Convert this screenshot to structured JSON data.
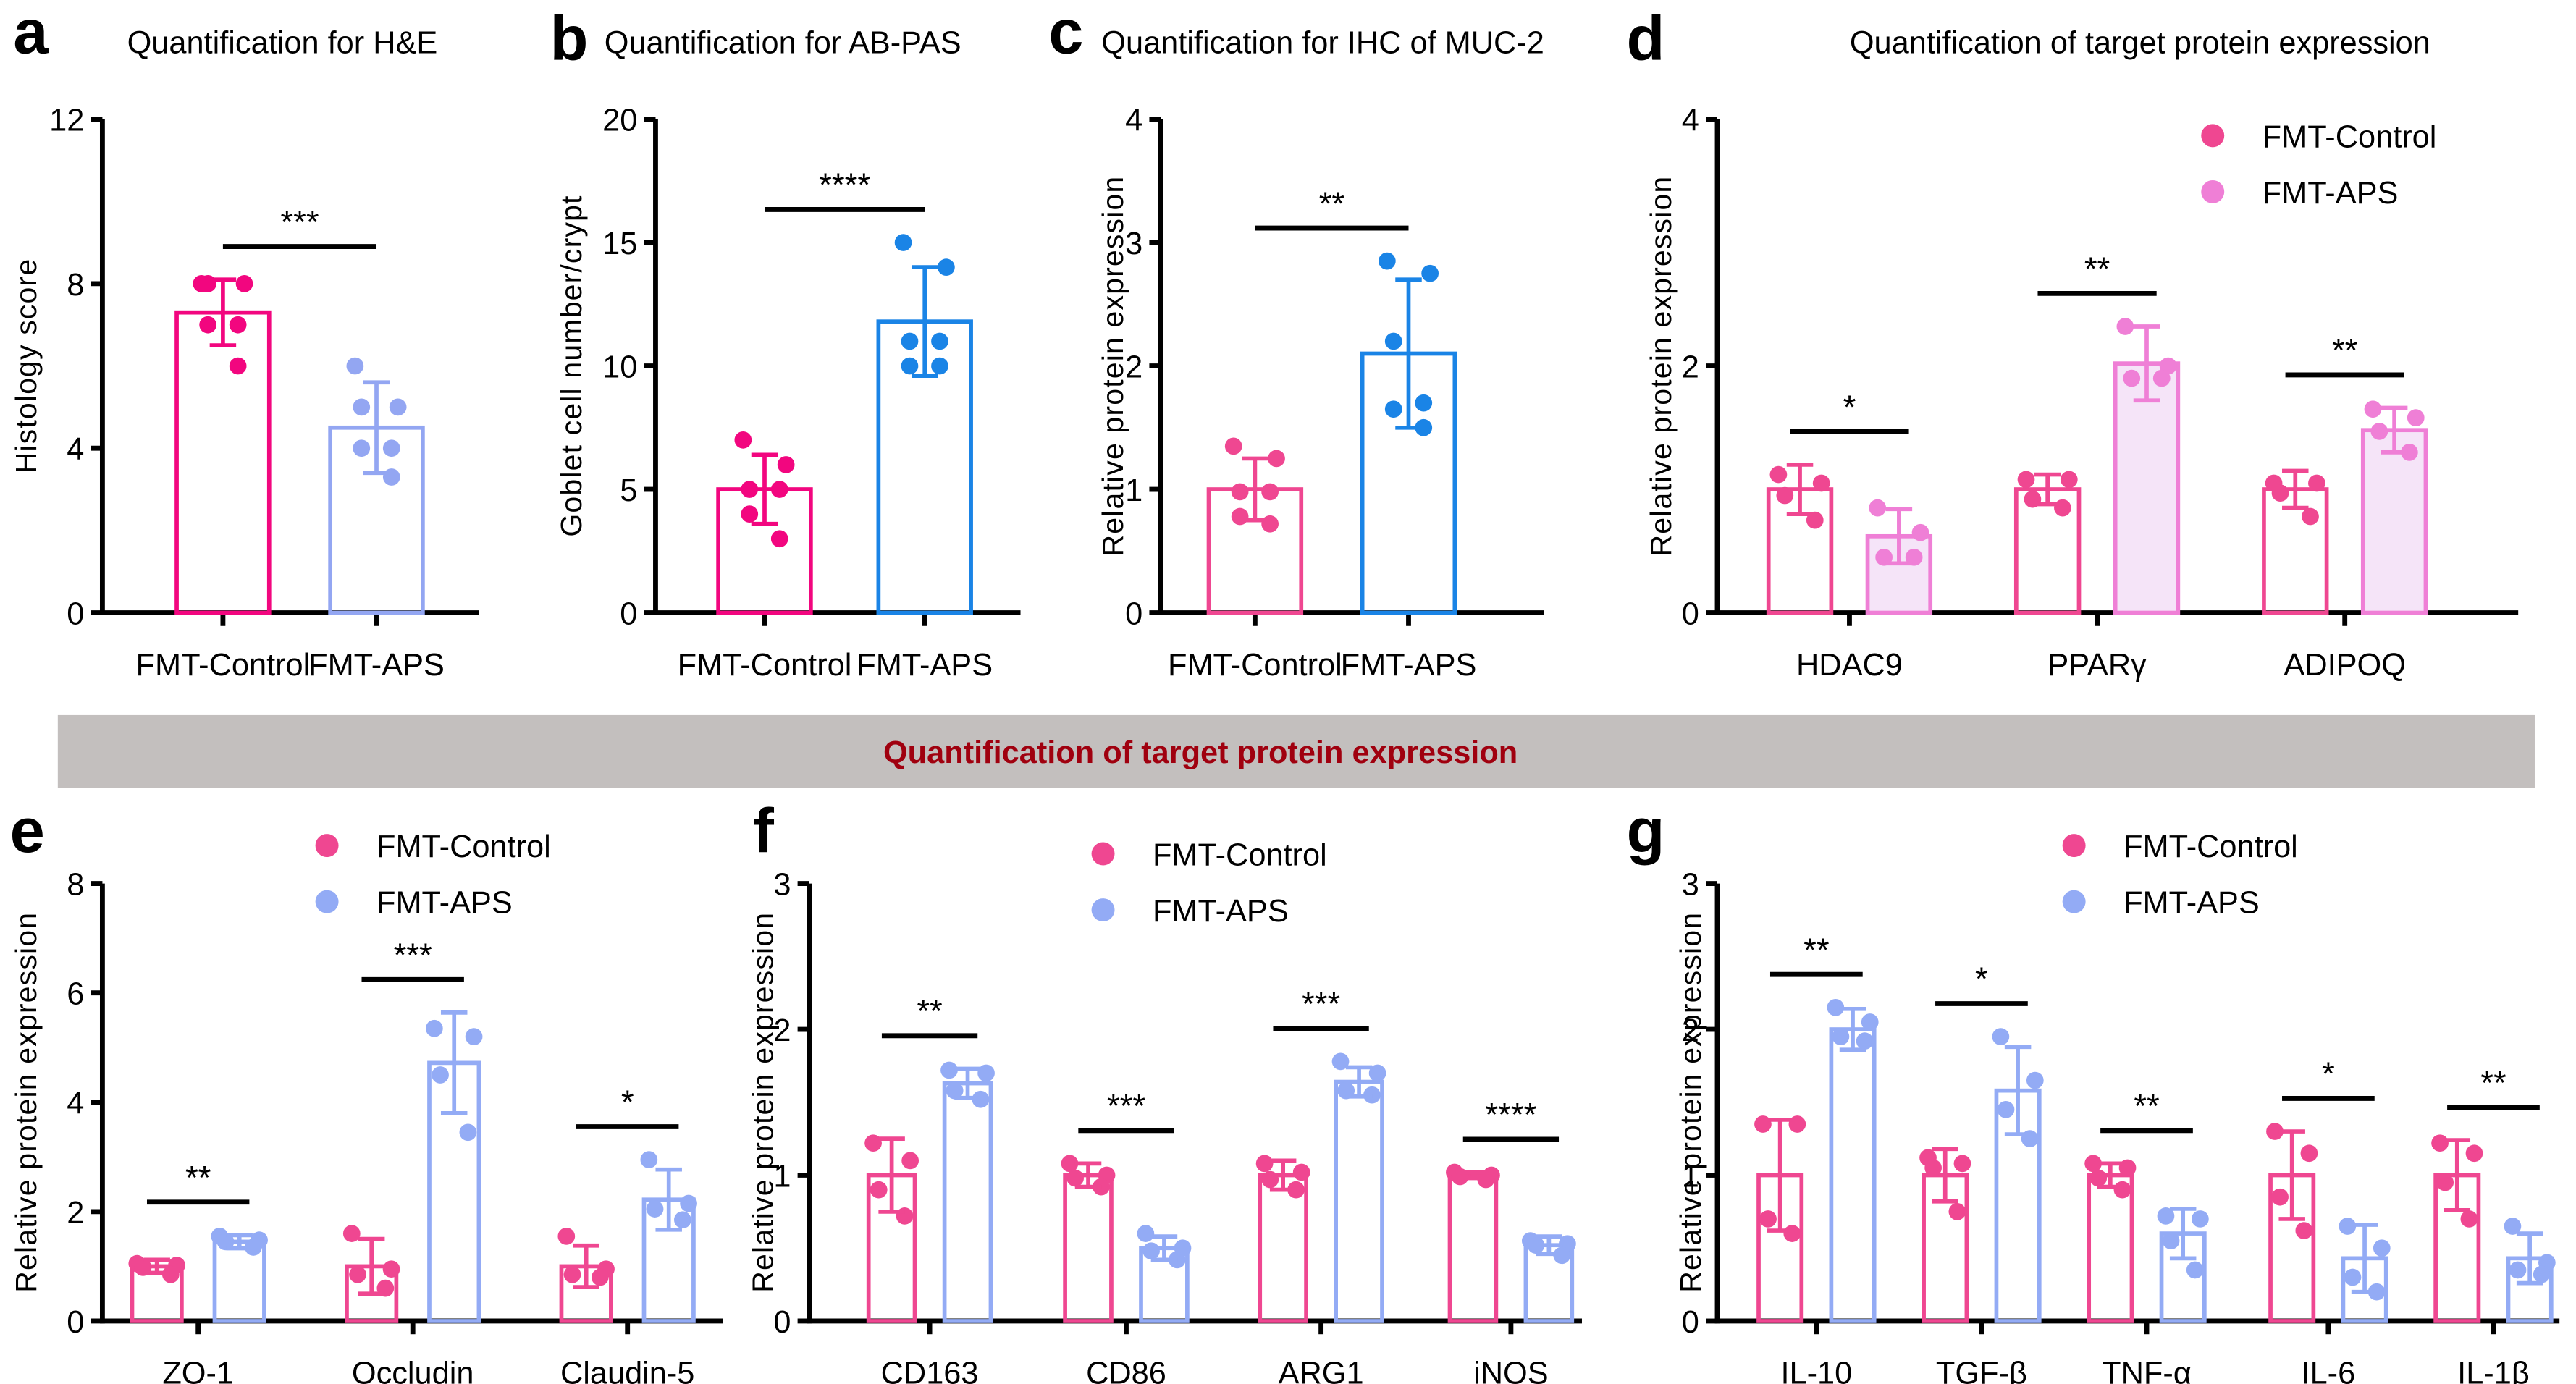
{
  "banner": {
    "text": "Quantification of target protein expression",
    "bg": "#c3bfbe",
    "color": "#a0000f"
  },
  "colors": {
    "control_a": "#f2067f",
    "aps_a": "#93a6f2",
    "aps_b": "#1a84e6",
    "control_pink": "#ef4791",
    "aps_d": "#ef7fd6",
    "aps_d_fill": "#f5e4f8",
    "aps_light_blue": "#93abf5"
  },
  "chart_data": [
    {
      "id": "a",
      "panel_label": "a",
      "type": "bar",
      "title": "Quantification for H&E",
      "ylabel": "Histology score",
      "xlabel": "",
      "ylim": [
        0,
        12
      ],
      "yticks": [
        "0",
        "4",
        "8",
        "12"
      ],
      "categories": [
        "FMT-Control",
        "FMT-APS"
      ],
      "values": [
        7.3,
        4.5
      ],
      "sd": [
        0.8,
        1.1
      ],
      "points": [
        [
          8.0,
          8.0,
          8.0,
          7.0,
          7.0,
          6.0
        ],
        [
          6.0,
          5.0,
          4.0,
          4.0,
          5.0,
          3.3
        ]
      ],
      "significance": [
        "***"
      ]
    },
    {
      "id": "b",
      "panel_label": "b",
      "type": "bar",
      "title": "Quantification for AB-PAS",
      "ylabel": "Goblet cell number/crypt",
      "xlabel": "",
      "ylim": [
        0,
        20
      ],
      "yticks": [
        "0",
        "5",
        "10",
        "15",
        "20"
      ],
      "categories": [
        "FMT-Control",
        "FMT-APS"
      ],
      "values": [
        5.0,
        11.8
      ],
      "sd": [
        1.4,
        2.2
      ],
      "points": [
        [
          7.0,
          6.0,
          5.0,
          5.0,
          4.0,
          3.0
        ],
        [
          15.0,
          14.0,
          11.0,
          11.0,
          10.0,
          10.0
        ]
      ],
      "significance": [
        "****"
      ]
    },
    {
      "id": "c",
      "panel_label": "c",
      "type": "bar",
      "title": "Quantification for IHC of MUC-2",
      "ylabel": "Relative protein expression",
      "xlabel": "",
      "ylim": [
        0,
        4
      ],
      "yticks": [
        "0",
        "1",
        "2",
        "3",
        "4"
      ],
      "categories": [
        "FMT-Control",
        "FMT-APS"
      ],
      "values": [
        1.0,
        2.1
      ],
      "sd": [
        0.25,
        0.6
      ],
      "points": [
        [
          1.35,
          1.25,
          0.98,
          0.98,
          0.78,
          0.72
        ],
        [
          2.85,
          2.75,
          2.2,
          1.7,
          1.65,
          1.5
        ]
      ],
      "significance": [
        "**"
      ]
    },
    {
      "id": "d",
      "panel_label": "d",
      "type": "bar",
      "title": "Quantification of target protein expression",
      "ylabel": "Relative protein expression",
      "xlabel": "",
      "ylim": [
        0,
        4
      ],
      "yticks": [
        "0",
        "2",
        "4"
      ],
      "categories": [
        "HDAC9",
        "PPARγ",
        "ADIPOQ"
      ],
      "legend": [
        "FMT-Control",
        "FMT-APS"
      ],
      "legend_position": "top-right",
      "series": [
        {
          "name": "FMT-Control",
          "values": [
            1.0,
            1.0,
            1.0
          ],
          "sd": [
            0.2,
            0.12,
            0.15
          ],
          "points": [
            [
              1.12,
              1.05,
              0.95,
              0.75
            ],
            [
              1.08,
              1.08,
              0.92,
              0.85
            ],
            [
              1.05,
              1.05,
              0.97,
              0.78
            ]
          ]
        },
        {
          "name": "FMT-APS",
          "values": [
            0.62,
            2.02,
            1.48
          ],
          "sd": [
            0.22,
            0.3,
            0.18
          ],
          "points": [
            [
              0.85,
              0.65,
              0.45,
              0.45
            ],
            [
              2.32,
              2.0,
              1.9,
              1.9
            ],
            [
              1.65,
              1.58,
              1.47,
              1.3
            ]
          ]
        }
      ],
      "significance": [
        "*",
        "**",
        "**"
      ]
    },
    {
      "id": "e",
      "panel_label": "e",
      "type": "bar",
      "title": "",
      "ylabel": "Relative protein expression",
      "xlabel": "",
      "ylim": [
        0,
        8
      ],
      "yticks": [
        "0",
        "2",
        "4",
        "6",
        "8"
      ],
      "categories": [
        "ZO-1",
        "Occludin",
        "Claudin-5"
      ],
      "legend": [
        "FMT-Control",
        "FMT-APS"
      ],
      "legend_position": "top",
      "series": [
        {
          "name": "FMT-Control",
          "values": [
            1.0,
            1.0,
            1.0
          ],
          "sd": [
            0.12,
            0.5,
            0.38
          ],
          "points": [
            [
              1.05,
              1.02,
              0.98,
              0.85
            ],
            [
              1.6,
              0.95,
              0.85,
              0.6
            ],
            [
              1.55,
              0.95,
              0.85,
              0.8
            ]
          ]
        },
        {
          "name": "FMT-APS",
          "values": [
            1.45,
            4.72,
            2.22
          ],
          "sd": [
            0.12,
            0.92,
            0.55
          ],
          "points": [
            [
              1.55,
              1.48,
              1.45,
              1.35
            ],
            [
              5.35,
              5.2,
              4.5,
              3.45
            ],
            [
              2.95,
              2.15,
              2.05,
              1.85
            ]
          ]
        }
      ],
      "significance": [
        "**",
        "***",
        "*"
      ]
    },
    {
      "id": "f",
      "panel_label": "f",
      "type": "bar",
      "title": "",
      "ylabel": "Relative protein expression",
      "xlabel": "",
      "ylim": [
        0,
        3
      ],
      "yticks": [
        "0",
        "1",
        "2",
        "3"
      ],
      "categories": [
        "CD163",
        "CD86",
        "ARG1",
        "iNOS"
      ],
      "legend": [
        "FMT-Control",
        "FMT-APS"
      ],
      "legend_position": "top",
      "series": [
        {
          "name": "FMT-Control",
          "values": [
            1.0,
            1.0,
            1.0,
            1.0
          ],
          "sd": [
            0.25,
            0.08,
            0.1,
            0.02
          ],
          "points": [
            [
              1.22,
              1.1,
              0.9,
              0.72
            ],
            [
              1.08,
              1.0,
              0.98,
              0.92
            ],
            [
              1.08,
              1.02,
              0.97,
              0.9
            ],
            [
              1.02,
              1.0,
              0.99,
              0.97
            ]
          ]
        },
        {
          "name": "FMT-APS",
          "values": [
            1.63,
            0.5,
            1.64,
            0.52
          ],
          "sd": [
            0.1,
            0.08,
            0.1,
            0.06
          ],
          "points": [
            [
              1.72,
              1.7,
              1.58,
              1.52
            ],
            [
              0.6,
              0.5,
              0.48,
              0.42
            ],
            [
              1.78,
              1.7,
              1.58,
              1.55
            ],
            [
              0.55,
              0.53,
              0.52,
              0.45
            ]
          ]
        }
      ],
      "significance": [
        "**",
        "***",
        "***",
        "****"
      ]
    },
    {
      "id": "g",
      "panel_label": "g",
      "type": "bar",
      "title": "",
      "ylabel": "Relative protein expression",
      "xlabel": "",
      "ylim": [
        0,
        3
      ],
      "yticks": [
        "0",
        "1",
        "2",
        "3"
      ],
      "categories": [
        "IL-10",
        "TGF-β",
        "TNF-α",
        "IL-6",
        "IL-1β"
      ],
      "legend": [
        "FMT-Control",
        "FMT-APS"
      ],
      "legend_position": "top",
      "series": [
        {
          "name": "FMT-Control",
          "values": [
            1.0,
            1.0,
            1.0,
            1.0,
            1.0
          ],
          "sd": [
            0.38,
            0.18,
            0.08,
            0.3,
            0.24
          ],
          "points": [
            [
              1.35,
              1.35,
              0.7,
              0.6
            ],
            [
              1.12,
              1.08,
              1.05,
              0.75
            ],
            [
              1.08,
              1.05,
              0.98,
              0.9
            ],
            [
              1.3,
              1.15,
              0.85,
              0.62
            ],
            [
              1.22,
              1.15,
              0.95,
              0.7
            ]
          ]
        },
        {
          "name": "FMT-APS",
          "values": [
            2.0,
            1.58,
            0.6,
            0.43,
            0.43
          ],
          "sd": [
            0.14,
            0.3,
            0.17,
            0.23,
            0.17
          ],
          "points": [
            [
              2.15,
              2.05,
              1.95,
              1.92
            ],
            [
              1.95,
              1.65,
              1.45,
              1.25
            ],
            [
              0.72,
              0.7,
              0.55,
              0.35
            ],
            [
              0.65,
              0.5,
              0.3,
              0.2
            ],
            [
              0.65,
              0.4,
              0.35,
              0.32
            ]
          ]
        }
      ],
      "significance": [
        "**",
        "*",
        "**",
        "*",
        "**"
      ]
    }
  ]
}
